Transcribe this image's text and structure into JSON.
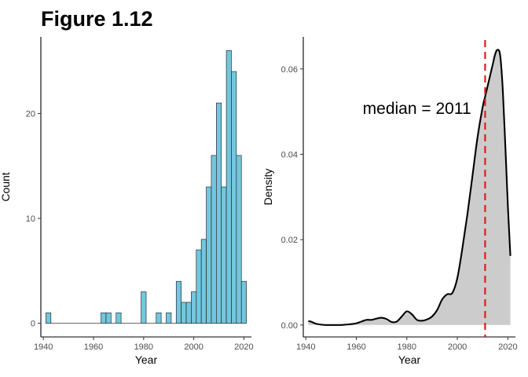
{
  "title": "Figure 1.12",
  "chart_data": [
    {
      "type": "bar",
      "subtype": "histogram",
      "xlabel": "Year",
      "ylabel": "Count",
      "xlim": [
        1939,
        2023
      ],
      "ylim": [
        -1.3,
        27.3
      ],
      "xticks": [
        1940,
        1960,
        1980,
        2000,
        2020
      ],
      "yticks": [
        0,
        10,
        20
      ],
      "bin_width": 2,
      "bin_start": 1941,
      "counts": [
        1,
        0,
        0,
        0,
        0,
        0,
        0,
        0,
        0,
        0,
        0,
        1,
        1,
        0,
        1,
        0,
        0,
        0,
        0,
        3,
        0,
        0,
        1,
        0,
        1,
        0,
        4,
        2,
        2,
        3,
        7,
        8,
        13,
        16,
        21,
        13,
        26,
        24,
        16,
        4
      ],
      "bar_color": "#72C7DE",
      "edge_color": "#2b2b2b",
      "grid": false
    },
    {
      "type": "area",
      "subtype": "density",
      "xlabel": "Year",
      "ylabel": "Density",
      "xlim": [
        1939,
        2023
      ],
      "ylim": [
        -0.0028,
        0.0675
      ],
      "xticks": [
        1940,
        1960,
        1980,
        2000,
        2020
      ],
      "yticks": [
        0.0,
        0.02,
        0.04,
        0.06
      ],
      "ytick_labels": [
        "0.00",
        "0.02",
        "0.04",
        "0.06"
      ],
      "x": [
        1941,
        1942,
        1944,
        1946,
        1948,
        1950,
        1952,
        1954,
        1956,
        1958,
        1960,
        1962,
        1964,
        1966,
        1968,
        1970,
        1972,
        1974,
        1976,
        1978,
        1980,
        1982,
        1984,
        1986,
        1988,
        1990,
        1992,
        1994,
        1996,
        1998,
        2000,
        2002,
        2004,
        2006,
        2008,
        2010,
        2011,
        2012,
        2014,
        2015,
        2016,
        2017,
        2018,
        2019,
        2020,
        2021
      ],
      "y": [
        0.0009,
        0.0008,
        0.0003,
        0.0001,
        0.0,
        0.0,
        0.0,
        0.0,
        0.0001,
        0.0002,
        0.0004,
        0.0008,
        0.0012,
        0.0012,
        0.0015,
        0.0017,
        0.0014,
        0.0007,
        0.0008,
        0.002,
        0.0032,
        0.0025,
        0.0012,
        0.001,
        0.0013,
        0.002,
        0.0035,
        0.006,
        0.0072,
        0.0075,
        0.011,
        0.018,
        0.026,
        0.035,
        0.044,
        0.051,
        0.0535,
        0.056,
        0.061,
        0.0635,
        0.0645,
        0.063,
        0.055,
        0.042,
        0.028,
        0.0162
      ],
      "fill_color": "#cccccc",
      "line_color": "#000000",
      "median": 2011,
      "median_line_color": "#e31a1c",
      "annotation": {
        "text": "median = 2011",
        "x": 1984,
        "y": 0.0495
      },
      "grid": false
    }
  ]
}
